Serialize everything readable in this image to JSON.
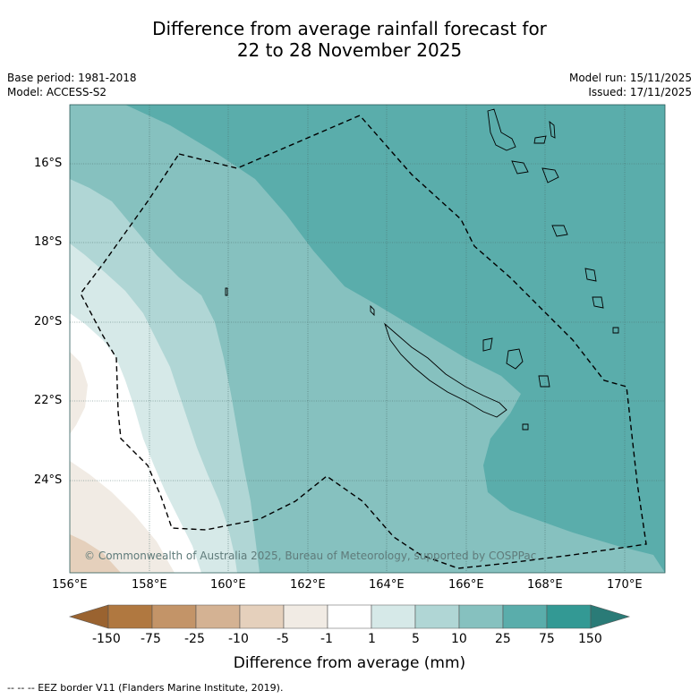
{
  "title_line1": "Difference from average rainfall forecast for",
  "title_line2": "22 to 28 November 2025",
  "meta": {
    "base_period": "Base period: 1981-2018",
    "model": "Model: ACCESS-S2",
    "model_run": "Model run: 15/11/2025",
    "issued": "Issued: 17/11/2025"
  },
  "map": {
    "lat_labels": [
      "16°S",
      "18°S",
      "20°S",
      "22°S",
      "24°S"
    ],
    "lon_labels": [
      "156°E",
      "158°E",
      "160°E",
      "162°E",
      "164°E",
      "166°E",
      "168°E",
      "170°E"
    ],
    "copyright": "© Commonwealth of Australia 2025, Bureau of Meteorology, supported by COSPPac"
  },
  "colorbar": {
    "title": "Difference from average (mm)",
    "tick_labels": [
      "-150",
      "-75",
      "-25",
      "-10",
      "-5",
      "-1",
      "1",
      "5",
      "10",
      "25",
      "75",
      "150"
    ],
    "colors": [
      "#9a6330",
      "#b07840",
      "#c39468",
      "#d4b293",
      "#e5d0bc",
      "#f1ebe4",
      "#ffffff",
      "#d6e9e8",
      "#b0d6d5",
      "#86c1bf",
      "#5aadab",
      "#339994",
      "#2a7b77"
    ]
  },
  "footer": "--  --  -- EEZ border V11 (Flanders Marine Institute, 2019)."
}
